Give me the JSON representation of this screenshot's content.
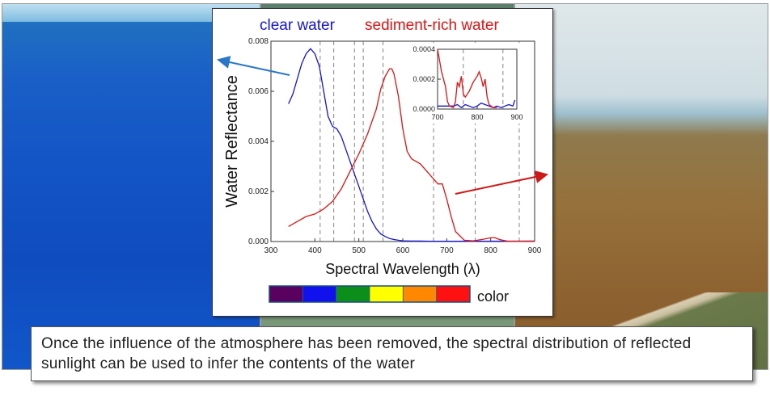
{
  "legend": {
    "clear_water": "clear water",
    "sediment_water": "sediment-rich water",
    "color_label": "color"
  },
  "colors": {
    "clear_water": "#1515d6",
    "sediment_water": "#e01414",
    "color_bar": [
      "#5a005f",
      "#1111ee",
      "#0c8f1a",
      "#ffff00",
      "#ff8800",
      "#ff1111"
    ],
    "arrow_blue": "#2a77c8",
    "arrow_red": "#d01818"
  },
  "caption": "Once the influence of the atmosphere has been removed, the spectral distribution of reflected sunlight can be used to infer the contents of the water",
  "chart_data": [
    {
      "type": "line",
      "xlabel": "Spectral Wavelength (λ)",
      "ylabel": "Water Reflectance",
      "xlim": [
        300,
        900
      ],
      "ylim": [
        0,
        0.008
      ],
      "xticks": [
        "300",
        "400",
        "500",
        "600",
        "700",
        "800",
        "900"
      ],
      "yticks": [
        "0.000",
        "0.002",
        "0.004",
        "0.006",
        "0.008"
      ],
      "vertical_reference_lines": [
        412,
        443,
        490,
        510,
        555,
        670,
        765,
        865
      ],
      "series": [
        {
          "name": "clear water",
          "x": [
            340,
            350,
            360,
            370,
            380,
            390,
            400,
            410,
            420,
            430,
            440,
            450,
            460,
            470,
            480,
            490,
            500,
            510,
            520,
            530,
            540,
            550,
            560,
            570,
            580,
            590,
            600,
            620,
            640,
            660,
            680,
            700,
            900
          ],
          "y": [
            0.0055,
            0.0059,
            0.0065,
            0.0071,
            0.0075,
            0.0077,
            0.0075,
            0.007,
            0.006,
            0.005,
            0.0046,
            0.0045,
            0.0042,
            0.0037,
            0.0032,
            0.0027,
            0.0022,
            0.0017,
            0.0012,
            0.0008,
            0.0005,
            0.0003,
            0.0002,
            0.00012,
            8e-05,
            5e-05,
            3e-05,
            2e-05,
            2e-05,
            1e-05,
            1e-05,
            1e-05,
            2e-05
          ]
        },
        {
          "name": "sediment-rich water",
          "x": [
            340,
            360,
            380,
            400,
            420,
            440,
            460,
            480,
            500,
            520,
            540,
            550,
            560,
            570,
            575,
            580,
            590,
            600,
            610,
            620,
            640,
            660,
            670,
            680,
            690,
            700,
            710,
            720,
            740,
            760,
            780,
            800,
            810,
            820,
            840,
            900
          ],
          "y": [
            0.0006,
            0.0008,
            0.001,
            0.0011,
            0.0013,
            0.0016,
            0.0021,
            0.0028,
            0.0035,
            0.0043,
            0.0053,
            0.0061,
            0.0066,
            0.0069,
            0.0069,
            0.0067,
            0.0058,
            0.0045,
            0.0036,
            0.0033,
            0.0031,
            0.0027,
            0.0025,
            0.0023,
            0.0023,
            0.0017,
            0.001,
            0.0004,
            5e-05,
            3e-05,
            8e-05,
            0.00015,
            0.00015,
            8e-05,
            1e-05,
            1e-05
          ]
        }
      ]
    },
    {
      "type": "line",
      "xlim": [
        700,
        900
      ],
      "ylim": [
        0,
        0.0004
      ],
      "xticks": [
        "700",
        "800",
        "900"
      ],
      "yticks": [
        "0.0000",
        "0.0002",
        "0.0004"
      ],
      "vertical_reference_lines": [
        765,
        865
      ],
      "series": [
        {
          "name": "clear water",
          "x": [
            700,
            720,
            740,
            750,
            760,
            770,
            780,
            790,
            800,
            810,
            820,
            830,
            840,
            850,
            860,
            870,
            880,
            890,
            895
          ],
          "y": [
            2e-05,
            2e-05,
            2e-05,
            3e-05,
            1e-05,
            3e-05,
            2e-05,
            1e-05,
            2e-05,
            4e-05,
            3e-05,
            2e-05,
            1e-05,
            2e-05,
            1e-05,
            2e-05,
            3e-05,
            2e-05,
            6e-05
          ]
        },
        {
          "name": "sediment-rich water",
          "x": [
            700,
            710,
            720,
            725,
            730,
            740,
            745,
            750,
            755,
            760,
            765,
            770,
            780,
            790,
            800,
            805,
            810,
            815,
            820,
            825,
            830,
            840,
            850
          ],
          "y": [
            0.0004,
            0.00025,
            0.00015,
            5e-05,
            2e-05,
            1e-05,
            5e-05,
            0.00018,
            0.00015,
            0.00022,
            0.0001,
            8e-05,
            0.00012,
            0.00018,
            0.00022,
            0.00025,
            0.00021,
            0.00015,
            0.0002,
            8e-05,
            3e-05,
            1e-05,
            1e-05
          ]
        }
      ]
    }
  ]
}
